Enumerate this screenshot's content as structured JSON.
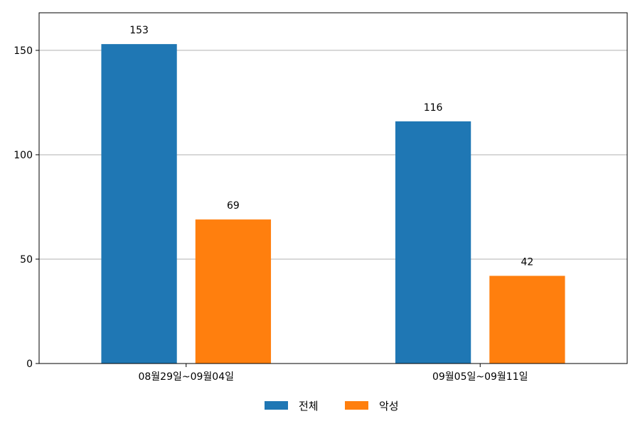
{
  "chart_data": {
    "type": "bar",
    "categories": [
      "08월29일~09월04일",
      "09월05일~09월11일"
    ],
    "series": [
      {
        "name": "전체",
        "values": [
          153,
          116
        ],
        "color": "#1f77b4"
      },
      {
        "name": "악성",
        "values": [
          69,
          42
        ],
        "color": "#ff7f0e"
      }
    ],
    "yticks": [
      0,
      50,
      100,
      150
    ],
    "ylim": [
      0,
      168
    ],
    "grid": "y",
    "legend": "bottom-center",
    "show_data_labels": true
  }
}
